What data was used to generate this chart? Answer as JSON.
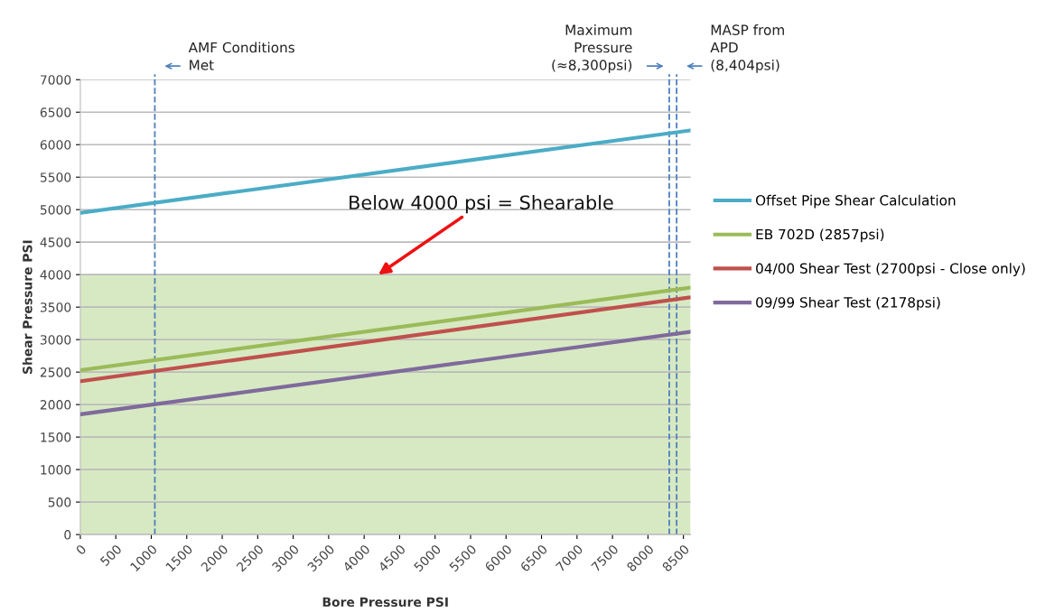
{
  "chart_data": {
    "type": "line",
    "xlabel": "Bore Pressure PSI",
    "ylabel": "Shear Pressure PSI",
    "x": [
      0,
      8600
    ],
    "series": [
      {
        "name": "Offset Pipe Shear Calculation",
        "color": "#4bacc6",
        "values": [
          4950,
          6220
        ]
      },
      {
        "name": "EB 702D (2857psi)",
        "color": "#9bbb59",
        "values": [
          2530,
          3800
        ]
      },
      {
        "name": "04/00 Shear Test (2700psi - Close only)",
        "color": "#c0504d",
        "values": [
          2360,
          3650
        ]
      },
      {
        "name": "09/99 Shear Test (2178psi)",
        "color": "#7f6a9c",
        "values": [
          1850,
          3120
        ]
      }
    ],
    "xlim": [
      0,
      8600
    ],
    "xticks": [
      0,
      500,
      1000,
      1500,
      2000,
      2500,
      3000,
      3500,
      4000,
      4500,
      5000,
      5500,
      6000,
      6500,
      7000,
      7500,
      8000,
      8500
    ],
    "ylim": [
      0,
      7000
    ],
    "yticks": [
      0,
      500,
      1000,
      1500,
      2000,
      2500,
      3000,
      3500,
      4000,
      4500,
      5000,
      5500,
      6000,
      6500,
      7000
    ],
    "bands": [
      {
        "axis": "y",
        "from": 0,
        "to": 4000,
        "color": "#d7e9c2"
      }
    ],
    "ref_lines": [
      {
        "axis": "x",
        "value": 1050,
        "label": "AMF Conditions\nMet",
        "color": "#4f81bd",
        "line_style": "dashed"
      },
      {
        "axis": "x",
        "value": 8300,
        "label": "Maximum\nPressure\n(≈8,300psi)",
        "color": "#4f81bd",
        "line_style": "dashed"
      },
      {
        "axis": "x",
        "value": 8404,
        "label": "MASP from\nAPD\n(8,404psi)",
        "color": "#4f81bd",
        "line_style": "dashed"
      }
    ],
    "annotations": [
      {
        "text": "Below 4000 psi = Shearable",
        "x": 4200,
        "y": 4000
      }
    ],
    "grid": "y",
    "legend": "right",
    "marker": "none",
    "line_style": "solid"
  }
}
